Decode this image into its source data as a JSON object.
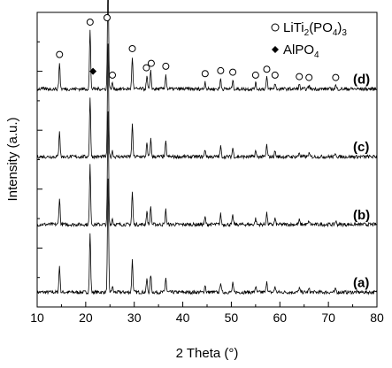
{
  "chart_data": {
    "type": "line",
    "xlabel": "2 Theta (°)",
    "ylabel": "Intensity (a.u.)",
    "xlim": [
      10,
      80
    ],
    "x_ticks": [
      "10",
      "20",
      "30",
      "40",
      "50",
      "60",
      "70",
      "80"
    ],
    "y_ticks_labeled": false,
    "grid": false,
    "legend": {
      "placement": "top-right",
      "entries": [
        {
          "marker": "circle-open",
          "label": "LiTi",
          "sub1": "2",
          "mid": "(PO",
          "sub2": "4",
          "end": ")",
          "sub3": "3"
        },
        {
          "marker": "diamond-filled",
          "label": "AlPO",
          "sub1": "4"
        }
      ]
    },
    "series": [
      {
        "name": "(a)",
        "baseline": 0.05
      },
      {
        "name": "(b)",
        "baseline": 0.28
      },
      {
        "name": "(c)",
        "baseline": 0.51
      },
      {
        "name": "(d)",
        "baseline": 0.74
      }
    ],
    "peaks": [
      {
        "x": 14.6,
        "h": 0.09
      },
      {
        "x": 20.9,
        "h": 0.2
      },
      {
        "x": 24.6,
        "h": 0.38
      },
      {
        "x": 25.5,
        "h": 0.02
      },
      {
        "x": 29.6,
        "h": 0.11
      },
      {
        "x": 32.6,
        "h": 0.045
      },
      {
        "x": 33.4,
        "h": 0.06
      },
      {
        "x": 36.5,
        "h": 0.05
      },
      {
        "x": 44.6,
        "h": 0.025
      },
      {
        "x": 47.8,
        "h": 0.035
      },
      {
        "x": 50.3,
        "h": 0.03
      },
      {
        "x": 55.0,
        "h": 0.02
      },
      {
        "x": 57.3,
        "h": 0.04
      },
      {
        "x": 59.0,
        "h": 0.02
      },
      {
        "x": 64.0,
        "h": 0.015
      },
      {
        "x": 66.0,
        "h": 0.012
      },
      {
        "x": 71.5,
        "h": 0.012
      }
    ],
    "annotations_d": {
      "circles_x": [
        14.6,
        20.9,
        24.4,
        25.5,
        29.6,
        32.5,
        33.5,
        36.5,
        44.6,
        47.8,
        50.3,
        55.0,
        57.3,
        59.0,
        64.0,
        66.0,
        71.5
      ],
      "diamond_x": [
        21.5
      ]
    }
  }
}
